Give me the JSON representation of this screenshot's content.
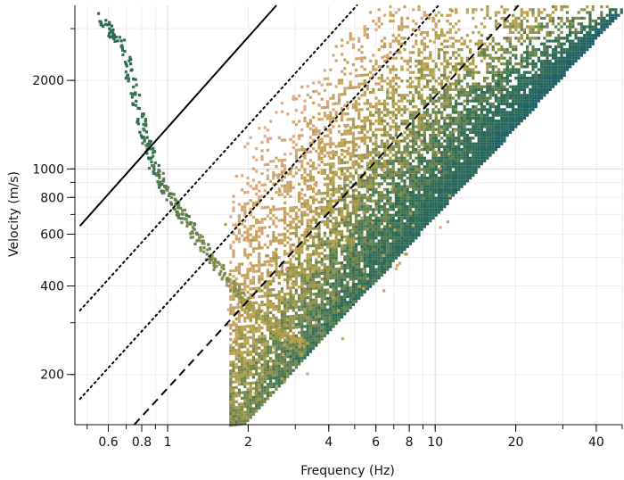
{
  "chart_data": {
    "type": "heatmap",
    "xlabel": "Frequency (Hz)",
    "ylabel": "Velocity (m/s)",
    "x_scale": "log",
    "y_scale": "log",
    "xlim": [
      0.45,
      50
    ],
    "ylim": [
      135,
      3600
    ],
    "grid": true,
    "x_ticks": [
      {
        "value": 0.6,
        "label": "0.6"
      },
      {
        "value": 0.8,
        "label": "0.8"
      },
      {
        "value": 1,
        "label": "1"
      },
      {
        "value": 2,
        "label": "2"
      },
      {
        "value": 4,
        "label": "4"
      },
      {
        "value": 6,
        "label": "6"
      },
      {
        "value": 8,
        "label": "8"
      },
      {
        "value": 10,
        "label": "10"
      },
      {
        "value": 20,
        "label": "20"
      },
      {
        "value": 40,
        "label": "40"
      }
    ],
    "y_ticks": [
      {
        "value": 200,
        "label": "200"
      },
      {
        "value": 400,
        "label": "400"
      },
      {
        "value": 600,
        "label": "600"
      },
      {
        "value": 800,
        "label": "800"
      },
      {
        "value": 1000,
        "label": "1000"
      },
      {
        "value": 2000,
        "label": "2000"
      }
    ],
    "colors": {
      "low": "#e3a989",
      "mid": "#b6a048",
      "high": "#2e6d52",
      "top": "#1b5c6b",
      "lines": "#000000"
    },
    "dispersion_curve": [
      {
        "f": 0.55,
        "v": 3300
      },
      {
        "f": 0.68,
        "v": 2600
      },
      {
        "f": 0.78,
        "v": 1500
      },
      {
        "f": 0.87,
        "v": 1050
      },
      {
        "f": 1.0,
        "v": 820
      },
      {
        "f": 1.2,
        "v": 640
      },
      {
        "f": 1.45,
        "v": 500
      },
      {
        "f": 1.75,
        "v": 400
      },
      {
        "f": 2.1,
        "v": 330
      },
      {
        "f": 2.6,
        "v": 280
      },
      {
        "f": 3.2,
        "v": 255
      }
    ],
    "reference_lines": [
      {
        "style": "solid",
        "points": [
          [
            0.47,
            640
          ],
          [
            2.55,
            3600
          ]
        ]
      },
      {
        "style": "dotted",
        "points": [
          [
            0.47,
            330
          ],
          [
            5.1,
            3600
          ]
        ]
      },
      {
        "style": "dotted",
        "points": [
          [
            0.47,
            165
          ],
          [
            10.3,
            3600
          ]
        ]
      },
      {
        "style": "dashed",
        "points": [
          [
            0.75,
            135
          ],
          [
            20.5,
            3600
          ]
        ]
      }
    ],
    "energy_band": {
      "lower_velocity_over_frequency": 70,
      "upper_velocity_over_frequency": 400,
      "f_min": 1.7,
      "f_max": 50
    }
  }
}
